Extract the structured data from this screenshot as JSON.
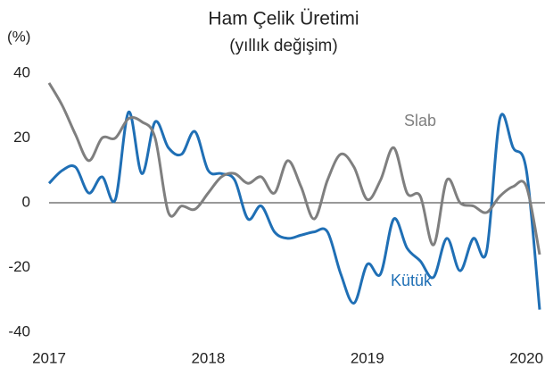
{
  "chart_data": {
    "type": "line",
    "title": "Ham Çelik Üretimi",
    "subtitle": "(yıllık değişim)",
    "y_label": "(%)",
    "categories": [
      "2017",
      null,
      null,
      null,
      null,
      null,
      null,
      null,
      null,
      null,
      null,
      null,
      "2018",
      null,
      null,
      null,
      null,
      null,
      null,
      null,
      null,
      null,
      null,
      null,
      "2019",
      null,
      null,
      null,
      null,
      null,
      null,
      null,
      null,
      null,
      null,
      null,
      "2020",
      null
    ],
    "series": [
      {
        "name": "Kütük",
        "color": "#1f6fb5",
        "values": [
          6,
          10,
          11,
          3,
          8,
          1,
          28,
          9,
          25,
          17,
          15,
          22,
          10,
          9,
          7,
          -5,
          -1,
          -9,
          -11,
          -10,
          -9,
          -9,
          -22,
          -31,
          -19,
          -22,
          -5,
          -14,
          -18,
          -23,
          -11,
          -21,
          -11,
          -15,
          26,
          17,
          10,
          -33
        ]
      },
      {
        "name": "Slab",
        "color": "#7f7f7f",
        "values": [
          37,
          30,
          21,
          13,
          20,
          20,
          26,
          25,
          20,
          -3,
          -1,
          -2,
          3,
          8,
          9,
          6,
          8,
          3,
          13,
          5,
          -5,
          7,
          15,
          11,
          1,
          7,
          17,
          3,
          2,
          -13,
          7,
          0,
          -1,
          -3,
          2,
          5,
          5,
          -16
        ]
      }
    ],
    "ylim": [
      -40,
      40
    ],
    "yticks": [
      -40,
      -20,
      0,
      20,
      40
    ],
    "grid": false,
    "zero_line": true
  }
}
